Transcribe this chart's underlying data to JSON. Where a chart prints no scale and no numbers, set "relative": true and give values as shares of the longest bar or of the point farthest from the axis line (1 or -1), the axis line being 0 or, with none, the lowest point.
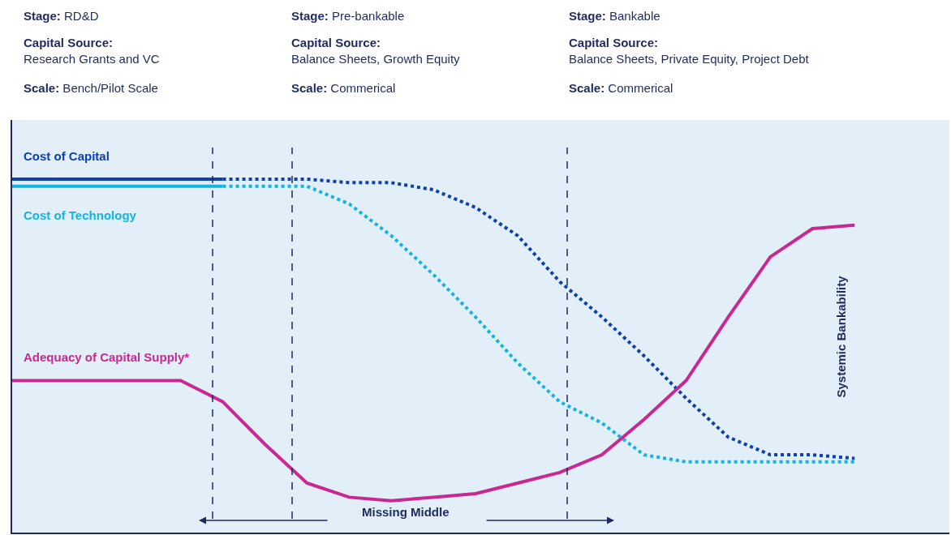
{
  "chart_data": {
    "type": "line",
    "relative": true,
    "legend": false,
    "grid": false,
    "categories": [
      null,
      null,
      null,
      null,
      null,
      null,
      null,
      null,
      null,
      null,
      null,
      null,
      null,
      null,
      null,
      null,
      null,
      null,
      null,
      null,
      null,
      null,
      null
    ],
    "series": [
      {
        "name": "Cost of Capital",
        "color": "#0d3fb0",
        "line_style": "solid",
        "values": [
          1.0,
          1.0,
          1.0,
          1.0,
          1.0,
          1.0,
          null,
          null,
          null,
          null,
          null,
          null,
          null,
          null,
          null,
          null,
          null,
          null,
          null,
          null,
          null,
          null,
          null
        ]
      },
      {
        "color": "#0d3fb0",
        "line_style": "dotted",
        "values": [
          null,
          null,
          null,
          null,
          null,
          1.0,
          1.0,
          1.0,
          0.99,
          0.99,
          0.97,
          0.92,
          0.84,
          0.71,
          0.61,
          0.5,
          0.38,
          0.27,
          0.22,
          0.22,
          0.21,
          null,
          null
        ]
      },
      {
        "name": "Cost of Technology",
        "color": "#14b4e0",
        "line_style": "solid",
        "values": [
          0.98,
          0.98,
          0.98,
          0.98,
          0.98,
          0.98,
          null,
          null,
          null,
          null,
          null,
          null,
          null,
          null,
          null,
          null,
          null,
          null,
          null,
          null,
          null,
          null,
          null
        ]
      },
      {
        "color": "#14b4e0",
        "line_style": "dotted",
        "values": [
          null,
          null,
          null,
          null,
          null,
          0.98,
          0.98,
          0.98,
          0.93,
          0.84,
          0.73,
          0.61,
          0.48,
          0.37,
          0.31,
          0.22,
          0.2,
          0.2,
          0.2,
          0.2,
          0.2,
          null,
          null
        ]
      },
      {
        "name": "Adequacy of Capital Supply*",
        "color": "#c8288f",
        "line_style": "solid",
        "values": [
          0.43,
          0.43,
          0.43,
          0.43,
          0.43,
          0.37,
          0.25,
          0.14,
          0.1,
          0.09,
          0.1,
          0.11,
          0.14,
          0.17,
          0.22,
          0.32,
          0.43,
          0.61,
          0.78,
          0.86,
          0.87,
          null,
          null
        ]
      }
    ],
    "annotations": [
      "Stage: RD&D",
      "Capital Source:\nResearch Grants and VC",
      "Scale: Bench/Pilot Scale",
      "Stage: Pre-bankable",
      "Capital Source:\nBalance Sheets, Growth Equity",
      "Scale: Commerical",
      "Stage: Bankable",
      "Capital Source:\nBalance Sheets, Private Equity, Project Debt",
      "Scale: Commerical",
      "Systemic Bankability",
      "Missing Middle"
    ]
  }
}
